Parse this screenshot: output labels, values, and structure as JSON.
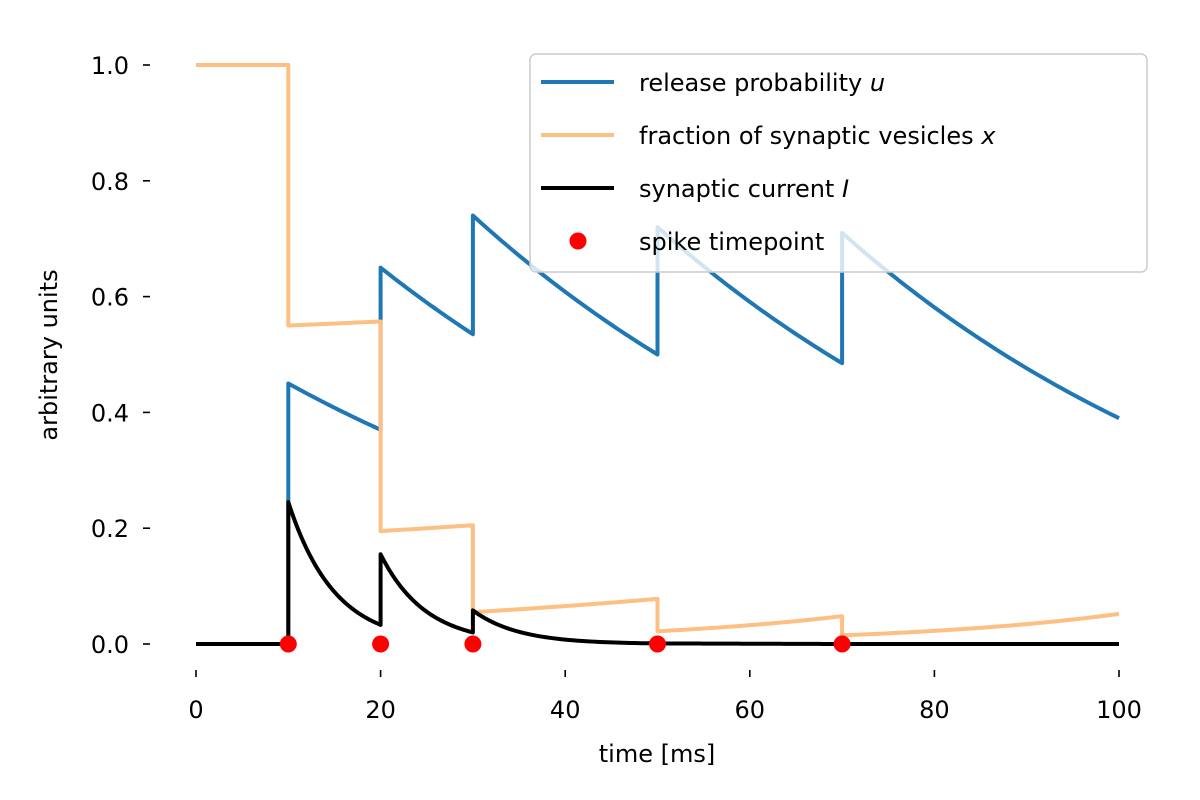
{
  "chart_data": {
    "type": "line",
    "xlabel": "time [ms]",
    "ylabel": "arbitrary units",
    "xlim": [
      0,
      100
    ],
    "ylim": [
      0,
      1.0
    ],
    "xticks": [
      0,
      20,
      40,
      60,
      80,
      100
    ],
    "yticks": [
      0.0,
      0.2,
      0.4,
      0.6,
      0.8,
      1.0
    ],
    "xtick_labels": [
      "0",
      "20",
      "40",
      "60",
      "80",
      "100"
    ],
    "ytick_labels": [
      "0.0",
      "0.2",
      "0.4",
      "0.6",
      "0.8",
      "1.0"
    ],
    "grid": false,
    "legend_position": "top-right",
    "legend": [
      {
        "text": "release probability ",
        "var": "u",
        "color": "#1f77b4",
        "kind": "line"
      },
      {
        "text": "fraction of synaptic vesicles ",
        "var": "x",
        "color": "#fdbf82",
        "kind": "line"
      },
      {
        "text": "synaptic current ",
        "var": "I",
        "color": "#000000",
        "kind": "line"
      },
      {
        "text": "spike timepoint",
        "var": "",
        "color": "#ff0000",
        "kind": "marker"
      }
    ],
    "spike_times": [
      10,
      20,
      30,
      50,
      70
    ],
    "series": [
      {
        "name": "release probability u",
        "color": "#1f77b4",
        "segments": [
          {
            "points": [
              [
                0,
                0
              ],
              [
                10,
                0
              ]
            ]
          },
          {
            "points": [
              [
                10,
                0.45
              ],
              [
                20,
                0.37
              ]
            ]
          },
          {
            "points": [
              [
                20,
                0.65
              ],
              [
                30,
                0.535
              ]
            ]
          },
          {
            "points": [
              [
                30,
                0.74
              ],
              [
                50,
                0.5
              ]
            ]
          },
          {
            "points": [
              [
                50,
                0.72
              ],
              [
                70,
                0.485
              ]
            ]
          },
          {
            "points": [
              [
                70,
                0.71
              ],
              [
                100,
                0.39
              ]
            ]
          }
        ]
      },
      {
        "name": "fraction of synaptic vesicles x",
        "color": "#fdbf82",
        "segments": [
          {
            "points": [
              [
                0,
                1.0
              ],
              [
                10,
                1.0
              ]
            ]
          },
          {
            "points": [
              [
                10,
                0.55
              ],
              [
                20,
                0.557
              ]
            ]
          },
          {
            "points": [
              [
                20,
                0.195
              ],
              [
                30,
                0.205
              ]
            ]
          },
          {
            "points": [
              [
                30,
                0.055
              ],
              [
                50,
                0.078
              ]
            ]
          },
          {
            "points": [
              [
                50,
                0.022
              ],
              [
                70,
                0.048
              ]
            ]
          },
          {
            "points": [
              [
                70,
                0.015
              ],
              [
                100,
                0.052
              ]
            ]
          }
        ]
      },
      {
        "name": "synaptic current I",
        "color": "#000000",
        "segments": [
          {
            "points": [
              [
                0,
                0
              ],
              [
                10,
                0
              ]
            ]
          },
          {
            "points": [
              [
                10,
                0.245
              ],
              [
                20,
                0.033
              ]
            ]
          },
          {
            "points": [
              [
                20,
                0.155
              ],
              [
                30,
                0.02
              ]
            ]
          },
          {
            "points": [
              [
                30,
                0.058
              ],
              [
                50,
                0.001
              ]
            ]
          },
          {
            "points": [
              [
                50,
                0.001
              ],
              [
                70,
                0.0
              ]
            ]
          },
          {
            "points": [
              [
                70,
                0.0
              ],
              [
                100,
                0.0
              ]
            ]
          }
        ]
      }
    ]
  }
}
